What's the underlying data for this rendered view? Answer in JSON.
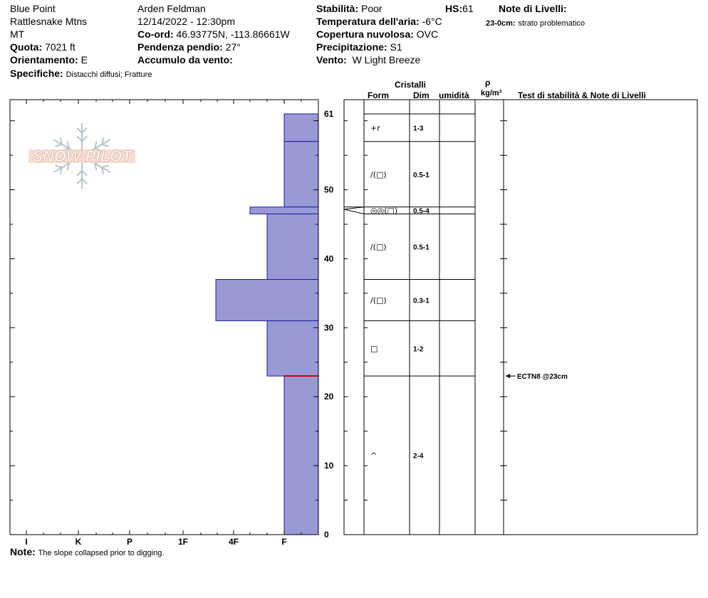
{
  "header": {
    "location": "Blue Point",
    "range": "Rattlesnake Mtns",
    "state": "MT",
    "elevation_label": "Quota:",
    "elevation_value": "7021 ft",
    "aspect_label": "Orientamento:",
    "aspect_value": "E",
    "specifics_label": "Specifiche:",
    "specifics_value": "Distacchi diffusi; Fratture",
    "observer": "Arden Feldman",
    "datetime": "12/14/2022 - 12:30pm",
    "coord_label": "Co-ord:",
    "coord_value": "46.93775N, -113.86661W",
    "slope_label": "Pendenza pendio:",
    "slope_value": "27°",
    "wind_loading_label": "Accumulo da vento:",
    "wind_loading_value": "",
    "stability_label": "Stabilità:",
    "stability_value": "Poor",
    "hs_label": "HS:",
    "hs_value": "61",
    "air_temp_label": "Temperatura dell'aria:",
    "air_temp_value": "-6°C",
    "sky_label": "Copertura nuvolosa:",
    "sky_value": "OVC",
    "precip_label": "Precipitazione:",
    "precip_value": "S1",
    "wind_label": "Vento:",
    "wind_value": "W Light Breeze",
    "layer_notes_label": "Note di Livelli:",
    "layer_note_depth": "23-0cm:",
    "layer_note_text": "strato problematico"
  },
  "columns": {
    "crystals": "Cristalli",
    "form": "Form",
    "size": "Dim",
    "moisture": "umidità",
    "rho": "ρ",
    "density_unit": "kg/m³",
    "tests": "Test di stabilità & Note di Livelli"
  },
  "footer": {
    "note_label": "Note:",
    "note_text": "The slope collapsed prior to digging."
  },
  "logo_text": "SNOW PILOT",
  "colors": {
    "layer_fill": "#9999d6",
    "layer_stroke": "#1a1aa0",
    "problem_line": "#cc0000",
    "logo": "#e8b8a8",
    "flake": "#b8c4cc"
  },
  "chart_data": {
    "type": "bar",
    "orientation": "horizontal",
    "y_axis": {
      "min": 0,
      "max": 61,
      "ticks": [
        0,
        10,
        20,
        30,
        40,
        50,
        61
      ],
      "unit": "cm"
    },
    "x_axis": {
      "categories": [
        "I",
        "K",
        "P",
        "1F",
        "4F",
        "F"
      ],
      "direction": "hardness increases leftward"
    },
    "layers": [
      {
        "top": 61,
        "bottom": 57,
        "hardness": "F",
        "form": "+r",
        "size": "1-3"
      },
      {
        "top": 57,
        "bottom": 47.5,
        "hardness": "F",
        "form": "/(□)",
        "size": "0.5-1"
      },
      {
        "top": 47.5,
        "bottom": 46.5,
        "hardness": "F+",
        "form": "◎◎(□)",
        "size": "0.5-4"
      },
      {
        "top": 46.5,
        "bottom": 37,
        "hardness": "4F-",
        "form": "/(□)",
        "size": "0.5-1"
      },
      {
        "top": 37,
        "bottom": 31,
        "hardness": "4F+",
        "form": "/(□)",
        "size": "0.3-1"
      },
      {
        "top": 31,
        "bottom": 23,
        "hardness": "4F-",
        "form": "□",
        "size": "1-2"
      },
      {
        "top": 23,
        "bottom": 0,
        "hardness": "F",
        "form": "^",
        "size": "2-4"
      }
    ],
    "problem_layer_depth": 23,
    "tests": [
      {
        "depth": 23,
        "label": "ECTN8 @23cm"
      }
    ]
  }
}
